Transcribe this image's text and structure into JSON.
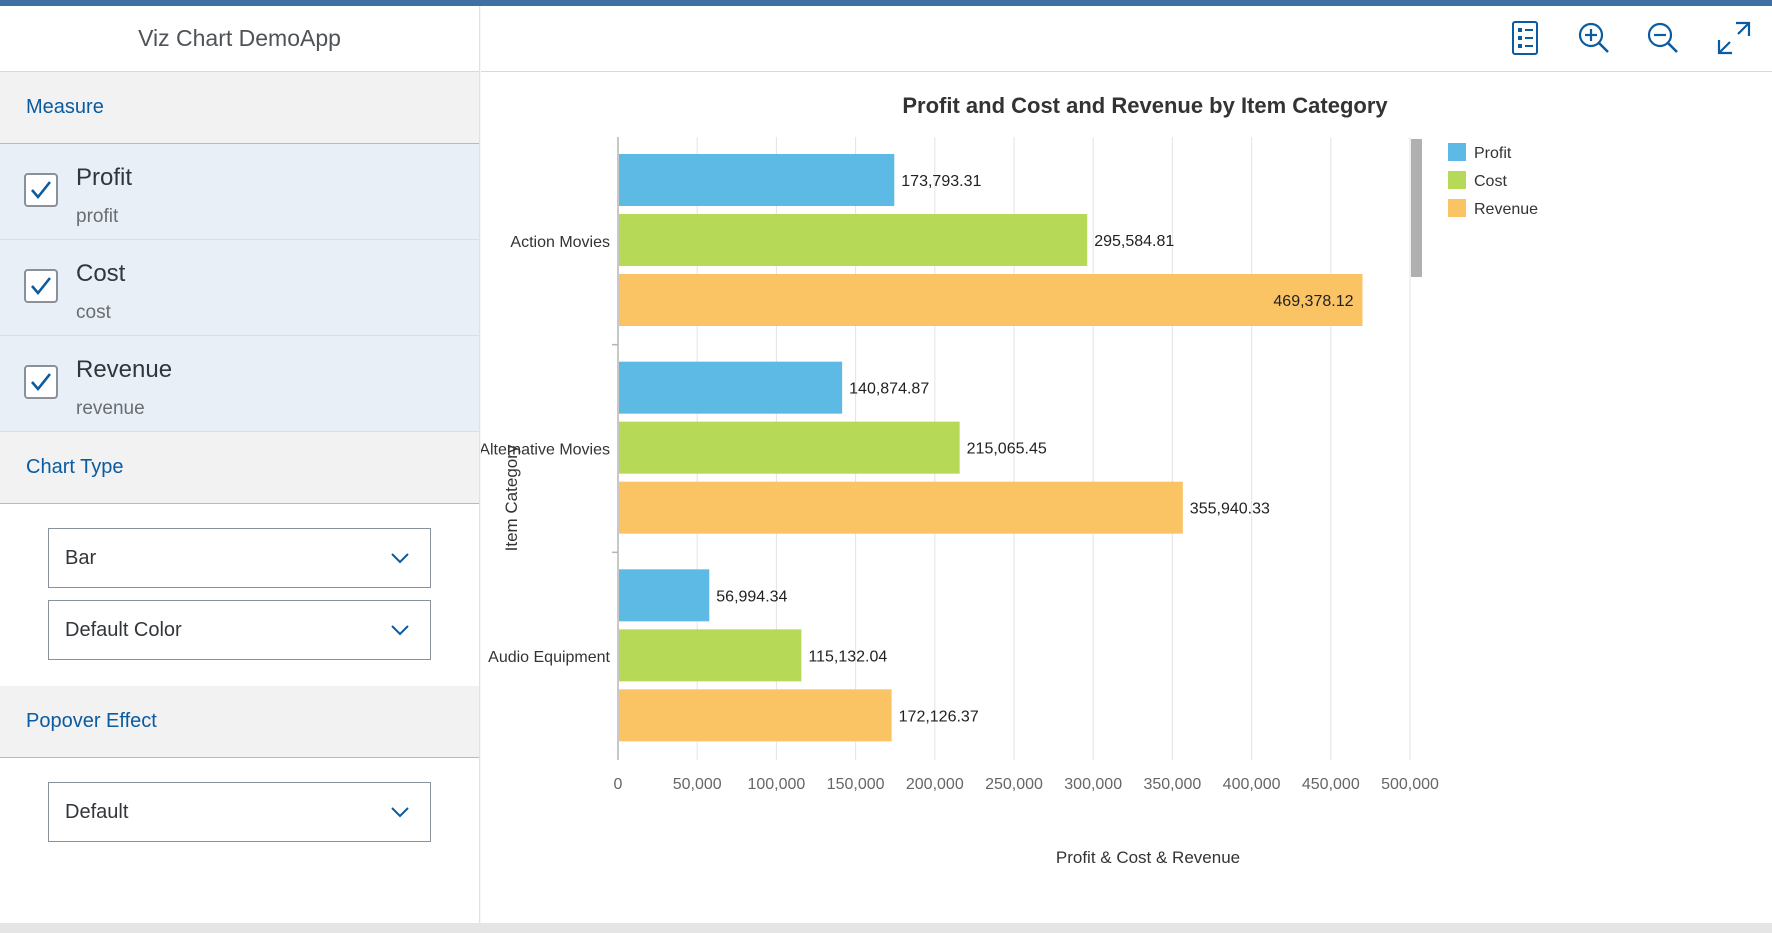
{
  "app": {
    "title": "Viz Chart DemoApp"
  },
  "sidebar": {
    "measure_header": "Measure",
    "measures": [
      {
        "label": "Profit",
        "sub": "profit",
        "checked": true
      },
      {
        "label": "Cost",
        "sub": "cost",
        "checked": true
      },
      {
        "label": "Revenue",
        "sub": "revenue",
        "checked": true
      }
    ],
    "chart_type_header": "Chart Type",
    "chart_type_value": "Bar",
    "color_value": "Default Color",
    "popover_header": "Popover Effect",
    "popover_value": "Default"
  },
  "toolbar": {
    "icons": [
      "legend-toggle-icon",
      "zoom-in-icon",
      "zoom-out-icon",
      "fullscreen-icon"
    ]
  },
  "colors": {
    "accent": "#0a5ba0",
    "profit": "#5cbae5",
    "cost": "#b6d957",
    "revenue": "#fac364"
  },
  "chart_data": {
    "type": "bar",
    "orientation": "horizontal",
    "title": "Profit and Cost and Revenue by Item Category",
    "xlabel": "Profit & Cost & Revenue",
    "ylabel": "Item Category",
    "categories": [
      "Action Movies",
      "Alternative Movies",
      "Audio Equipment"
    ],
    "series": [
      {
        "name": "Profit",
        "color": "#5cbae5",
        "values": [
          173793.31,
          140874.87,
          56994.34
        ],
        "labels": [
          "173,793.31",
          "140,874.87",
          "56,994.34"
        ]
      },
      {
        "name": "Cost",
        "color": "#b6d957",
        "values": [
          295584.81,
          215065.45,
          115132.04
        ],
        "labels": [
          "295,584.81",
          "215,065.45",
          "115,132.04"
        ]
      },
      {
        "name": "Revenue",
        "color": "#fac364",
        "values": [
          469378.12,
          355940.33,
          172126.37
        ],
        "labels": [
          "469,378.12",
          "355,940.33",
          "172,126.37"
        ]
      }
    ],
    "xlim": [
      0,
      500000
    ],
    "xticks": [
      0,
      50000,
      100000,
      150000,
      200000,
      250000,
      300000,
      350000,
      400000,
      450000,
      500000
    ],
    "xtick_labels": [
      "0",
      "50,000",
      "100,000",
      "150,000",
      "200,000",
      "250,000",
      "300,000",
      "350,000",
      "400,000",
      "450,000",
      "500,000"
    ],
    "grid": true,
    "legend": "top-right"
  }
}
